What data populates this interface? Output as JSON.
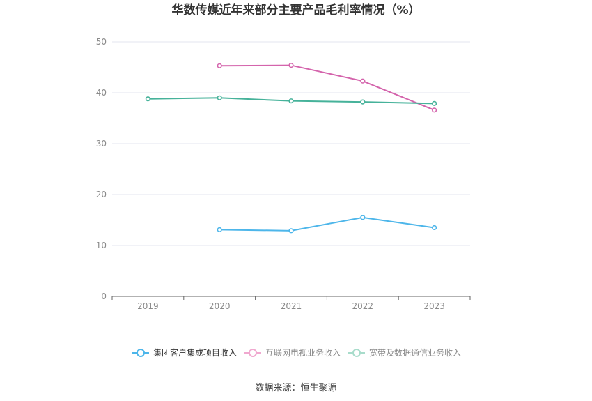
{
  "chart_data": {
    "type": "line",
    "title": "华数传媒近年来部分主要产品毛利率情况（%）",
    "xlabel": "",
    "ylabel": "",
    "categories": [
      "2019",
      "2020",
      "2021",
      "2022",
      "2023"
    ],
    "ylim": [
      0,
      50
    ],
    "yticks": [
      0,
      10,
      20,
      30,
      40,
      50
    ],
    "grid": true,
    "legend_position": "bottom",
    "series": [
      {
        "name": "集团客户集成项目收入",
        "color": "#4DB6EA",
        "values": [
          null,
          13.1,
          12.9,
          15.5,
          13.5
        ]
      },
      {
        "name": "互联网电视业务收入",
        "color": "#D464AC",
        "values": [
          null,
          45.3,
          45.4,
          42.3,
          36.6
        ]
      },
      {
        "name": "宽带及数据通信业务收入",
        "color": "#46B29A",
        "values": [
          38.8,
          39.0,
          38.4,
          38.2,
          37.9
        ]
      }
    ],
    "source": "数据来源：恒生聚源"
  }
}
